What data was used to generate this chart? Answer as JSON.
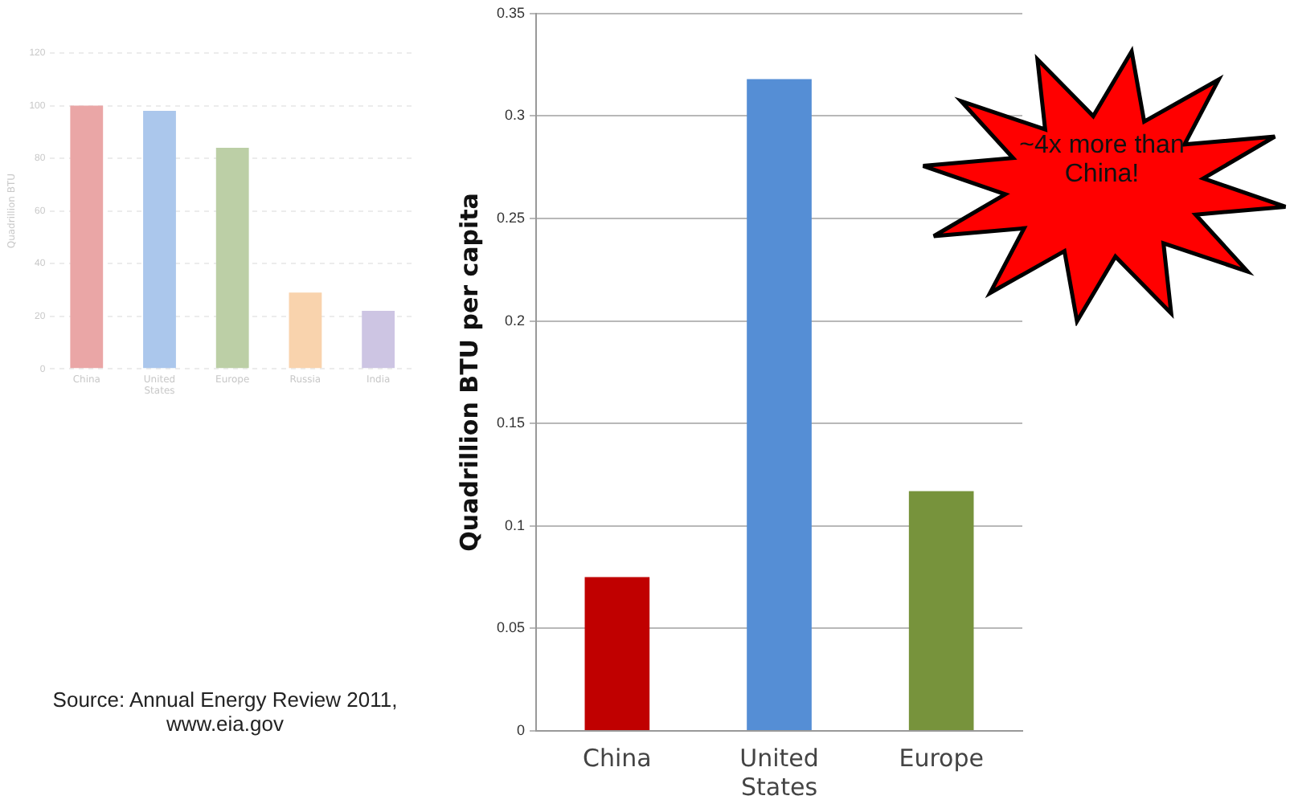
{
  "chart_data": [
    {
      "type": "bar",
      "ylabel": "Quadrillion BTU",
      "categories": [
        "China",
        "United States",
        "Europe",
        "Russia",
        "India"
      ],
      "values": [
        100,
        98,
        84,
        29,
        22
      ],
      "colors": [
        "#eaa6a6",
        "#abc7ec",
        "#bccfa6",
        "#f9d3ad",
        "#cdc5e3"
      ],
      "ylim": [
        0,
        120
      ],
      "yticks": [
        0,
        20,
        40,
        60,
        80,
        100,
        120
      ],
      "grid": "y",
      "annotations": [
        "Source: Annual Energy Review 2011, www.eia.gov"
      ]
    },
    {
      "type": "bar",
      "ylabel": "Quadrillion BTU per capita",
      "categories": [
        "China",
        "United States",
        "Europe"
      ],
      "values": [
        0.075,
        0.318,
        0.117
      ],
      "colors": [
        "#c00000",
        "#558ed5",
        "#77933c"
      ],
      "ylim": [
        0,
        0.35
      ],
      "yticks": [
        0,
        0.05,
        0.1,
        0.15,
        0.2,
        0.25,
        0.3,
        0.35
      ],
      "grid": "y",
      "annotations": [
        "~4x more than China!"
      ]
    }
  ]
}
